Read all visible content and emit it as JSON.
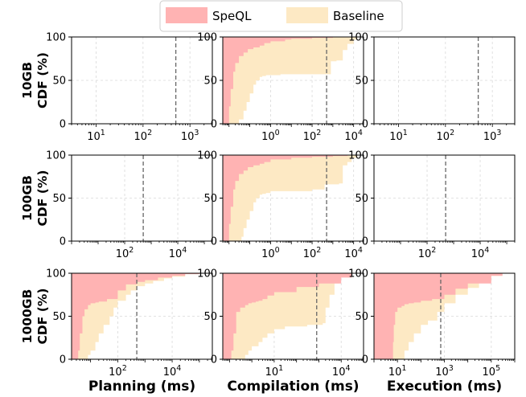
{
  "legend": [
    {
      "label": "SpeQL",
      "color": "#ffb3b3"
    },
    {
      "label": "Baseline",
      "color": "#fde9c4"
    }
  ],
  "row_labels": [
    "10GB\nCDF (%)",
    "100GB\nCDF (%)",
    "1000GB\nCDF (%)"
  ],
  "col_labels": [
    "Planning (ms)",
    "Compilation (ms)",
    "Execution (ms)"
  ],
  "chart_data": [
    {
      "type": "area",
      "row": "10GB",
      "col": "Planning",
      "xscale": "log",
      "xlim": [
        3,
        3000
      ],
      "ylim": [
        0,
        100
      ],
      "yticks": [
        0,
        50,
        100
      ],
      "xticks": [
        {
          "v": 10,
          "b": "10",
          "e": "1"
        },
        {
          "v": 100,
          "b": "10",
          "e": "2"
        },
        {
          "v": 1000,
          "b": "10",
          "e": "3"
        }
      ],
      "vline": 500,
      "series": []
    },
    {
      "type": "area",
      "row": "10GB",
      "col": "Compilation",
      "xscale": "log",
      "xlim": [
        0.005,
        30000
      ],
      "ylim": [
        0,
        100
      ],
      "yticks": [
        0,
        50,
        100
      ],
      "xticks": [
        {
          "v": 1,
          "b": "10",
          "e": "0"
        },
        {
          "v": 100,
          "b": "10",
          "e": "2"
        },
        {
          "v": 10000,
          "b": "10",
          "e": "4"
        }
      ],
      "vline": 500,
      "series": [
        {
          "name": "SpeQL",
          "color": "#ffb3b3",
          "x": [
            0.008,
            0.01,
            0.012,
            0.016,
            0.02,
            0.03,
            0.05,
            0.08,
            0.15,
            0.3,
            0.5,
            1,
            5,
            10,
            100,
            1000,
            5000,
            10000
          ],
          "y": [
            0,
            20,
            40,
            60,
            70,
            78,
            82,
            86,
            88,
            90,
            93,
            95,
            97,
            98,
            99,
            100,
            100,
            100
          ]
        },
        {
          "name": "Baseline",
          "color": "#fde9c4",
          "x": [
            0.02,
            0.03,
            0.05,
            0.07,
            0.1,
            0.15,
            0.2,
            0.3,
            0.4,
            0.6,
            1,
            3,
            10,
            100,
            500,
            800,
            1500,
            3000,
            5000,
            10000,
            15000
          ],
          "y": [
            0,
            5,
            15,
            25,
            35,
            45,
            50,
            54,
            55,
            56,
            56,
            57,
            57,
            57,
            57,
            72,
            73,
            85,
            92,
            97,
            100
          ]
        }
      ]
    },
    {
      "type": "area",
      "row": "10GB",
      "col": "Execution",
      "xscale": "log",
      "xlim": [
        3,
        3000
      ],
      "ylim": [
        0,
        100
      ],
      "yticks": [
        0,
        50,
        100
      ],
      "xticks": [
        {
          "v": 10,
          "b": "10",
          "e": "1"
        },
        {
          "v": 100,
          "b": "10",
          "e": "2"
        },
        {
          "v": 1000,
          "b": "10",
          "e": "3"
        }
      ],
      "vline": 500,
      "series": []
    },
    {
      "type": "area",
      "row": "100GB",
      "col": "Planning",
      "xscale": "log",
      "xlim": [
        1,
        200000
      ],
      "ylim": [
        0,
        100
      ],
      "yticks": [
        0,
        50,
        100
      ],
      "xticks": [
        {
          "v": 100,
          "b": "10",
          "e": "2"
        },
        {
          "v": 10000,
          "b": "10",
          "e": "4"
        }
      ],
      "vline": 500,
      "series": []
    },
    {
      "type": "area",
      "row": "100GB",
      "col": "Compilation",
      "xscale": "log",
      "xlim": [
        0.005,
        30000
      ],
      "ylim": [
        0,
        100
      ],
      "yticks": [
        0,
        50,
        100
      ],
      "xticks": [
        {
          "v": 1,
          "b": "10",
          "e": "0"
        },
        {
          "v": 100,
          "b": "10",
          "e": "2"
        },
        {
          "v": 10000,
          "b": "10",
          "e": "4"
        }
      ],
      "vline": 500,
      "series": [
        {
          "name": "SpeQL",
          "color": "#ffb3b3",
          "x": [
            0.008,
            0.01,
            0.012,
            0.016,
            0.02,
            0.03,
            0.05,
            0.08,
            0.15,
            0.3,
            0.5,
            1,
            10,
            100,
            1000,
            5000,
            10000
          ],
          "y": [
            0,
            20,
            40,
            60,
            70,
            78,
            82,
            86,
            88,
            90,
            92,
            95,
            97,
            98,
            99,
            100,
            100
          ]
        },
        {
          "name": "Baseline",
          "color": "#fde9c4",
          "x": [
            0.03,
            0.04,
            0.05,
            0.07,
            0.1,
            0.15,
            0.2,
            0.3,
            0.4,
            0.6,
            1,
            3,
            10,
            100,
            400,
            1000,
            2000,
            3000,
            5000,
            8000,
            15000
          ],
          "y": [
            0,
            5,
            15,
            25,
            35,
            45,
            50,
            54,
            55,
            56,
            58,
            58,
            58,
            60,
            66,
            66,
            67,
            88,
            92,
            97,
            100
          ]
        }
      ]
    },
    {
      "type": "area",
      "row": "100GB",
      "col": "Execution",
      "xscale": "log",
      "xlim": [
        1,
        200000
      ],
      "ylim": [
        0,
        100
      ],
      "yticks": [
        0,
        50,
        100
      ],
      "xticks": [
        {
          "v": 100,
          "b": "10",
          "e": "2"
        },
        {
          "v": 10000,
          "b": "10",
          "e": "4"
        }
      ],
      "vline": 500,
      "series": []
    },
    {
      "type": "area",
      "row": "1000GB",
      "col": "Planning",
      "xscale": "log",
      "xlim": [
        2,
        300000
      ],
      "ylim": [
        0,
        100
      ],
      "yticks": [
        0,
        50,
        100
      ],
      "xticks": [
        {
          "v": 100,
          "b": "10",
          "e": "2"
        },
        {
          "v": 10000,
          "b": "10",
          "e": "4"
        }
      ],
      "vline": 500,
      "series": [
        {
          "name": "SpeQL",
          "color": "#ffb3b3",
          "x": [
            3,
            3.5,
            4,
            5,
            6,
            8,
            10,
            15,
            20,
            40,
            100,
            200,
            500,
            1000,
            3000,
            10000,
            30000,
            100000
          ],
          "y": [
            0,
            10,
            30,
            50,
            58,
            63,
            65,
            66,
            67,
            70,
            80,
            87,
            90,
            92,
            95,
            97,
            99,
            100
          ]
        },
        {
          "name": "Baseline",
          "color": "#fde9c4",
          "x": [
            5,
            8,
            10,
            15,
            20,
            30,
            50,
            70,
            100,
            200,
            300,
            500,
            1000,
            2000,
            5000,
            10000,
            30000,
            100000
          ],
          "y": [
            0,
            5,
            10,
            20,
            30,
            40,
            50,
            60,
            68,
            75,
            80,
            85,
            88,
            91,
            94,
            96,
            99,
            100
          ]
        }
      ]
    },
    {
      "type": "area",
      "row": "1000GB",
      "col": "Compilation",
      "xscale": "log",
      "xlim": [
        0.05,
        100000
      ],
      "ylim": [
        0,
        100
      ],
      "yticks": [
        0,
        50,
        100
      ],
      "xticks": [
        {
          "v": 10,
          "b": "10",
          "e": "1"
        },
        {
          "v": 10000,
          "b": "10",
          "e": "4"
        }
      ],
      "vline": 800,
      "series": [
        {
          "name": "SpeQL",
          "color": "#ffb3b3",
          "x": [
            0.1,
            0.12,
            0.15,
            0.2,
            0.3,
            0.5,
            0.7,
            1,
            1.5,
            2,
            3,
            5,
            10,
            100,
            1000,
            10000,
            30000
          ],
          "y": [
            0,
            10,
            30,
            55,
            60,
            63,
            65,
            66,
            67,
            68,
            70,
            74,
            78,
            84,
            88,
            95,
            100
          ]
        },
        {
          "name": "Baseline",
          "color": "#fde9c4",
          "x": [
            0.3,
            0.5,
            0.7,
            1,
            2,
            3,
            5,
            10,
            30,
            100,
            300,
            800,
            1500,
            2000,
            3000,
            5000,
            8000,
            10000,
            20000
          ],
          "y": [
            0,
            5,
            10,
            15,
            20,
            25,
            30,
            35,
            38,
            38,
            40,
            40,
            42,
            60,
            75,
            88,
            93,
            96,
            100
          ]
        }
      ]
    },
    {
      "type": "area",
      "row": "1000GB",
      "col": "Execution",
      "xscale": "log",
      "xlim": [
        1,
        1000000
      ],
      "ylim": [
        0,
        100
      ],
      "yticks": [
        0,
        50,
        100
      ],
      "xticks": [
        {
          "v": 10,
          "b": "10",
          "e": "1"
        },
        {
          "v": 1000,
          "b": "10",
          "e": "3"
        },
        {
          "v": 100000,
          "b": "10",
          "e": "5"
        }
      ],
      "vline": 700,
      "series": [
        {
          "name": "SpeQL",
          "color": "#ffb3b3",
          "x": [
            6,
            6.5,
            7,
            8,
            10,
            15,
            20,
            30,
            50,
            100,
            300,
            1000,
            3000,
            10000,
            100000,
            300000
          ],
          "y": [
            0,
            20,
            40,
            55,
            60,
            62,
            64,
            65,
            66,
            68,
            70,
            75,
            82,
            88,
            97,
            100
          ]
        },
        {
          "name": "Baseline",
          "color": "#fde9c4",
          "x": [
            15,
            20,
            30,
            50,
            100,
            200,
            500,
            1000,
            3000,
            10000,
            30000,
            100000,
            300000
          ],
          "y": [
            0,
            10,
            20,
            30,
            40,
            45,
            55,
            65,
            75,
            83,
            90,
            97,
            100
          ]
        }
      ]
    }
  ]
}
